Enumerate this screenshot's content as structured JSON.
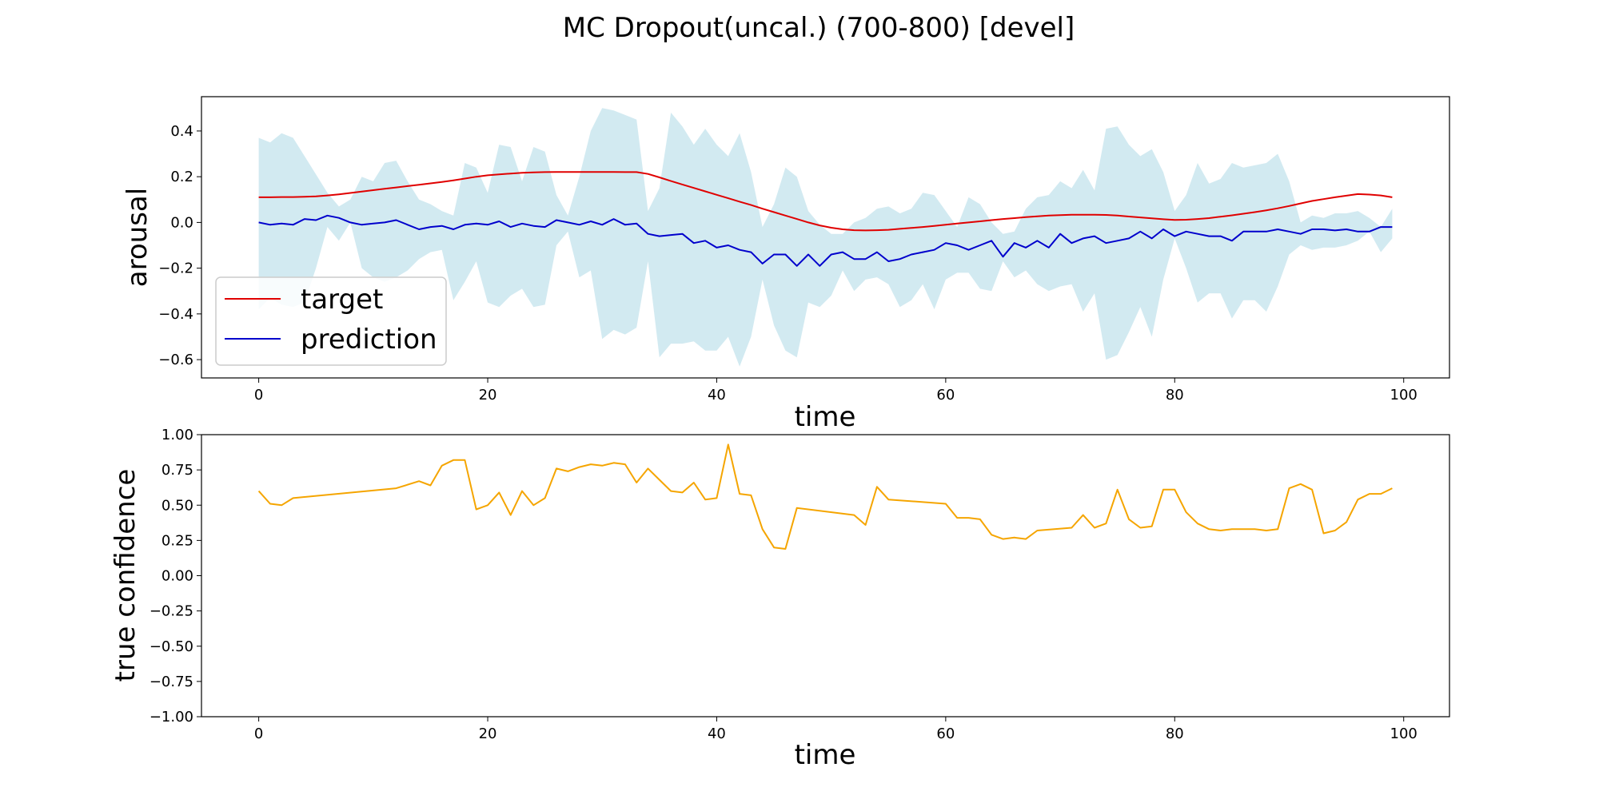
{
  "figure_title": "MC Dropout(uncal.) (700-800) [devel]",
  "colors": {
    "target": "#e00000",
    "prediction": "#0000cc",
    "band": "#add8e6",
    "confidence": "#f5a500"
  },
  "chart_data": [
    {
      "type": "line",
      "xlabel": "time",
      "ylabel": "arousal",
      "xlim": [
        -5,
        104
      ],
      "ylim": [
        -0.68,
        0.55
      ],
      "xticks": [
        0,
        20,
        40,
        60,
        80,
        100
      ],
      "yticks": [
        -0.6,
        -0.4,
        -0.2,
        0.0,
        0.2,
        0.4
      ],
      "legend_position": "lower-left",
      "band": {
        "x_range": [
          0,
          99
        ],
        "upper": [
          0.37,
          0.35,
          0.39,
          0.37,
          0.29,
          0.21,
          0.13,
          0.07,
          0.1,
          0.2,
          0.18,
          0.26,
          0.27,
          0.18,
          0.1,
          0.08,
          0.05,
          0.03,
          0.26,
          0.24,
          0.13,
          0.34,
          0.33,
          0.18,
          0.33,
          0.31,
          0.12,
          0.03,
          0.2,
          0.4,
          0.5,
          0.49,
          0.47,
          0.45,
          0.05,
          0.15,
          0.48,
          0.42,
          0.34,
          0.41,
          0.34,
          0.29,
          0.39,
          0.22,
          -0.02,
          0.08,
          0.24,
          0.2,
          0.05,
          -0.01,
          -0.05,
          -0.05,
          0.0,
          0.02,
          0.06,
          0.07,
          0.04,
          0.06,
          0.13,
          0.12,
          0.05,
          -0.02,
          0.11,
          0.08,
          0.0,
          -0.05,
          -0.04,
          0.06,
          0.11,
          0.12,
          0.18,
          0.15,
          0.23,
          0.14,
          0.41,
          0.42,
          0.34,
          0.29,
          0.32,
          0.22,
          0.05,
          0.12,
          0.26,
          0.17,
          0.19,
          0.26,
          0.24,
          0.25,
          0.26,
          0.3,
          0.18,
          0.0,
          0.03,
          0.02,
          0.04,
          0.04,
          0.05,
          0.02,
          -0.02,
          0.06
        ],
        "lower": [
          -0.38,
          -0.33,
          -0.36,
          -0.37,
          -0.35,
          -0.2,
          -0.02,
          -0.08,
          0.0,
          -0.2,
          -0.24,
          -0.26,
          -0.24,
          -0.21,
          -0.16,
          -0.13,
          -0.12,
          -0.34,
          -0.26,
          -0.17,
          -0.35,
          -0.37,
          -0.32,
          -0.29,
          -0.37,
          -0.36,
          -0.1,
          -0.04,
          -0.24,
          -0.21,
          -0.51,
          -0.47,
          -0.49,
          -0.46,
          -0.17,
          -0.59,
          -0.53,
          -0.53,
          -0.52,
          -0.56,
          -0.56,
          -0.5,
          -0.63,
          -0.5,
          -0.25,
          -0.45,
          -0.56,
          -0.59,
          -0.35,
          -0.37,
          -0.32,
          -0.21,
          -0.3,
          -0.25,
          -0.24,
          -0.27,
          -0.37,
          -0.34,
          -0.27,
          -0.38,
          -0.25,
          -0.22,
          -0.22,
          -0.29,
          -0.3,
          -0.17,
          -0.24,
          -0.21,
          -0.27,
          -0.3,
          -0.28,
          -0.27,
          -0.39,
          -0.31,
          -0.6,
          -0.58,
          -0.48,
          -0.37,
          -0.5,
          -0.25,
          -0.07,
          -0.2,
          -0.35,
          -0.31,
          -0.31,
          -0.42,
          -0.34,
          -0.34,
          -0.39,
          -0.28,
          -0.14,
          -0.1,
          -0.12,
          -0.11,
          -0.11,
          -0.1,
          -0.08,
          -0.04,
          -0.13,
          -0.07
        ]
      },
      "series": [
        {
          "name": "target",
          "color_key": "target",
          "x_range": [
            0,
            99
          ],
          "values": [
            0.11,
            0.11,
            0.111,
            0.111,
            0.112,
            0.114,
            0.118,
            0.123,
            0.129,
            0.135,
            0.141,
            0.147,
            0.153,
            0.159,
            0.165,
            0.171,
            0.177,
            0.184,
            0.192,
            0.2,
            0.206,
            0.21,
            0.214,
            0.217,
            0.219,
            0.22,
            0.221,
            0.221,
            0.221,
            0.221,
            0.221,
            0.221,
            0.22,
            0.22,
            0.212,
            0.197,
            0.181,
            0.166,
            0.151,
            0.136,
            0.121,
            0.106,
            0.091,
            0.076,
            0.06,
            0.045,
            0.03,
            0.015,
            0.0,
            -0.013,
            -0.023,
            -0.03,
            -0.034,
            -0.035,
            -0.034,
            -0.032,
            -0.028,
            -0.024,
            -0.02,
            -0.015,
            -0.01,
            -0.005,
            0.0,
            0.005,
            0.01,
            0.015,
            0.019,
            0.023,
            0.027,
            0.03,
            0.032,
            0.034,
            0.034,
            0.034,
            0.033,
            0.03,
            0.026,
            0.022,
            0.018,
            0.014,
            0.011,
            0.012,
            0.015,
            0.019,
            0.025,
            0.031,
            0.038,
            0.045,
            0.053,
            0.062,
            0.072,
            0.083,
            0.094,
            0.102,
            0.11,
            0.117,
            0.124,
            0.122,
            0.118,
            0.11
          ]
        },
        {
          "name": "prediction",
          "color_key": "prediction",
          "x_range": [
            0,
            99
          ],
          "values": [
            0.0,
            -0.01,
            -0.005,
            -0.01,
            0.015,
            0.01,
            0.03,
            0.02,
            0.0,
            -0.01,
            -0.005,
            0.0,
            0.01,
            -0.01,
            -0.03,
            -0.02,
            -0.015,
            -0.03,
            -0.01,
            -0.005,
            -0.01,
            0.005,
            -0.02,
            -0.005,
            -0.015,
            -0.02,
            0.01,
            0.0,
            -0.01,
            0.005,
            -0.01,
            0.015,
            -0.01,
            -0.005,
            -0.05,
            -0.06,
            -0.055,
            -0.05,
            -0.09,
            -0.08,
            -0.11,
            -0.1,
            -0.12,
            -0.13,
            -0.18,
            -0.14,
            -0.14,
            -0.19,
            -0.14,
            -0.19,
            -0.14,
            -0.13,
            -0.16,
            -0.16,
            -0.13,
            -0.17,
            -0.16,
            -0.14,
            -0.13,
            -0.12,
            -0.09,
            -0.1,
            -0.12,
            -0.1,
            -0.08,
            -0.15,
            -0.09,
            -0.11,
            -0.08,
            -0.11,
            -0.05,
            -0.09,
            -0.07,
            -0.06,
            -0.09,
            -0.08,
            -0.07,
            -0.04,
            -0.07,
            -0.03,
            -0.06,
            -0.04,
            -0.05,
            -0.06,
            -0.06,
            -0.08,
            -0.04,
            -0.04,
            -0.04,
            -0.03,
            -0.04,
            -0.05,
            -0.03,
            -0.03,
            -0.035,
            -0.03,
            -0.04,
            -0.04,
            -0.02,
            -0.02
          ]
        }
      ]
    },
    {
      "type": "line",
      "xlabel": "time",
      "ylabel": "true confidence",
      "xlim": [
        -5,
        104
      ],
      "ylim": [
        -1.0,
        1.0
      ],
      "xticks": [
        0,
        20,
        40,
        60,
        80,
        100
      ],
      "yticks": [
        -1.0,
        -0.75,
        -0.5,
        -0.25,
        0.0,
        0.25,
        0.5,
        0.75,
        1.0
      ],
      "ytick_labels": [
        "−1.00",
        "−0.75",
        "−0.50",
        "−0.25",
        "0.00",
        "0.25",
        "0.50",
        "0.75",
        "1.00"
      ],
      "series": [
        {
          "color_key": "confidence",
          "x": [
            0,
            1,
            2,
            3,
            12,
            14,
            15,
            16,
            17,
            18,
            19,
            20,
            21,
            22,
            23,
            24,
            25,
            26,
            27,
            28,
            29,
            30,
            31,
            32,
            33,
            34,
            35,
            36,
            37,
            38,
            39,
            40,
            41,
            42,
            43,
            44,
            45,
            46,
            47,
            52,
            53,
            54,
            55,
            60,
            61,
            62,
            63,
            64,
            65,
            66,
            67,
            68,
            71,
            72,
            73,
            74,
            75,
            76,
            77,
            78,
            79,
            80,
            81,
            82,
            83,
            84,
            85,
            86,
            87,
            88,
            89,
            90,
            91,
            92,
            93,
            94,
            95,
            96,
            97,
            98,
            99
          ],
          "values": [
            0.6,
            0.51,
            0.5,
            0.55,
            0.62,
            0.67,
            0.64,
            0.78,
            0.82,
            0.82,
            0.47,
            0.5,
            0.59,
            0.43,
            0.6,
            0.5,
            0.55,
            0.76,
            0.74,
            0.77,
            0.79,
            0.78,
            0.8,
            0.79,
            0.66,
            0.76,
            0.68,
            0.6,
            0.59,
            0.66,
            0.54,
            0.55,
            0.93,
            0.58,
            0.57,
            0.33,
            0.2,
            0.19,
            0.48,
            0.43,
            0.36,
            0.63,
            0.54,
            0.51,
            0.41,
            0.41,
            0.4,
            0.29,
            0.26,
            0.27,
            0.26,
            0.32,
            0.34,
            0.43,
            0.34,
            0.37,
            0.61,
            0.4,
            0.34,
            0.35,
            0.61,
            0.61,
            0.45,
            0.37,
            0.33,
            0.32,
            0.33,
            0.33,
            0.33,
            0.32,
            0.33,
            0.62,
            0.65,
            0.61,
            0.3,
            0.32,
            0.38,
            0.54,
            0.58,
            0.58,
            0.62
          ]
        }
      ]
    }
  ]
}
